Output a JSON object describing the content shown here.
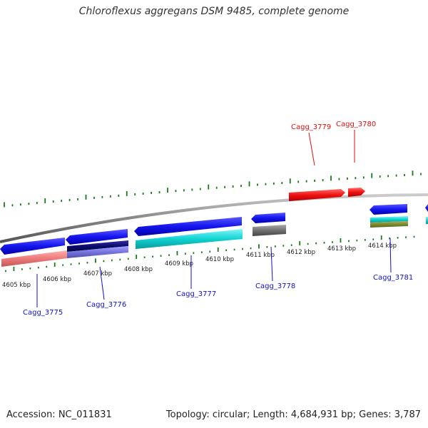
{
  "header": {
    "title": "Chloroflexus aggregans DSM 9485, complete genome"
  },
  "footer": {
    "accession": "Accession: NC_011831",
    "stats": "Topology: circular; Length: 4,684,931 bp; Genes: 3,787"
  },
  "colors": {
    "backbone": "#888888",
    "tick": "#1a7a1a",
    "forward_gene": "#ee1111",
    "label_forward": "#dd1111",
    "label_reverse": "#1111cc"
  },
  "scale_labels": [
    "4605 kbp",
    "4606 kbp",
    "4607 kbp",
    "4608 kbp",
    "4609 kbp",
    "4610 kbp",
    "4611 kbp",
    "4612 kbp",
    "4613 kbp",
    "4614 kbp"
  ],
  "gene_labels": [
    {
      "name": "Cagg_3775",
      "strand": "reverse"
    },
    {
      "name": "Cagg_3776",
      "strand": "reverse"
    },
    {
      "name": "Cagg_3777",
      "strand": "reverse"
    },
    {
      "name": "Cagg_3778",
      "strand": "reverse"
    },
    {
      "name": "Cagg_3779",
      "strand": "forward"
    },
    {
      "name": "Cagg_3780",
      "strand": "forward"
    },
    {
      "name": "Cagg_3781",
      "strand": "reverse"
    }
  ]
}
